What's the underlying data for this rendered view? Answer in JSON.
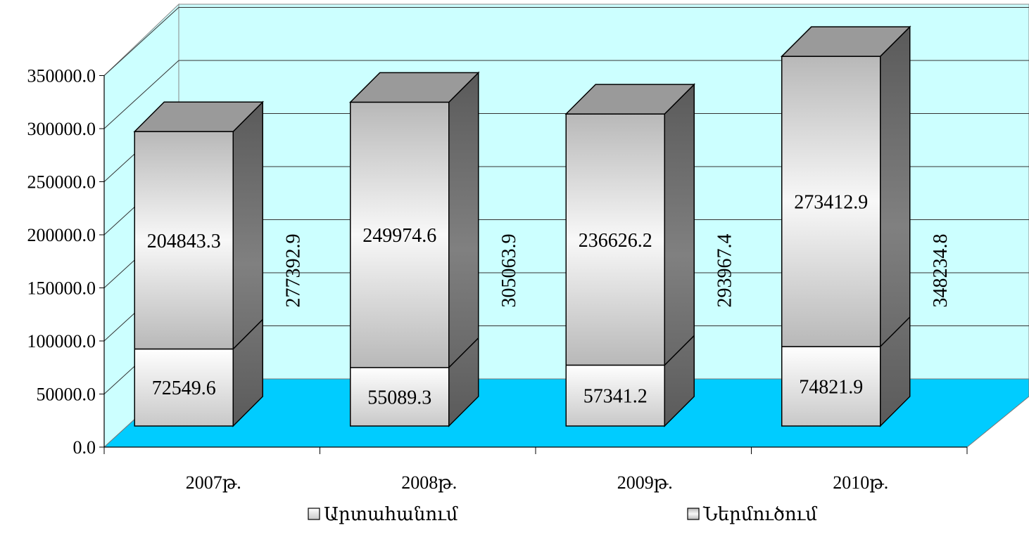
{
  "chart_data": {
    "type": "bar",
    "stacked": true,
    "three_d": true,
    "categories": [
      "2007թ.",
      "2008թ.",
      "2009թ.",
      "2010թ."
    ],
    "series": [
      {
        "name": "Արտահանում",
        "values": [
          72549.6,
          55089.3,
          57341.2,
          74821.9
        ]
      },
      {
        "name": "Ներմուծում",
        "values": [
          204843.3,
          249974.6,
          236626.2,
          273412.9
        ]
      }
    ],
    "totals": [
      277392.9,
      305063.9,
      293967.4,
      348234.8
    ],
    "value_labels": [
      "72549.6",
      "55089.3",
      "57341.2",
      "74821.9"
    ],
    "import_labels": [
      "204843.3",
      "249974.6",
      "236626.2",
      "273412.9"
    ],
    "total_labels": [
      "277392.9",
      "305063.9",
      "293967.4",
      "348234.8"
    ],
    "ylim": [
      0,
      350000
    ],
    "yticks": [
      0,
      50000,
      100000,
      150000,
      200000,
      250000,
      300000,
      350000
    ],
    "ytick_labels": [
      "0.0",
      "50000.0",
      "100000.0",
      "150000.0",
      "200000.0",
      "250000.0",
      "300000.0",
      "350000.0"
    ],
    "grid": true,
    "legend": "bottom",
    "colors": {
      "wall": "#ccffff",
      "floor": "#00ccff",
      "bar_front": "#e0e0e0",
      "bar_side": "#6a6a6a",
      "bar_top": "#9a9a9a"
    }
  }
}
